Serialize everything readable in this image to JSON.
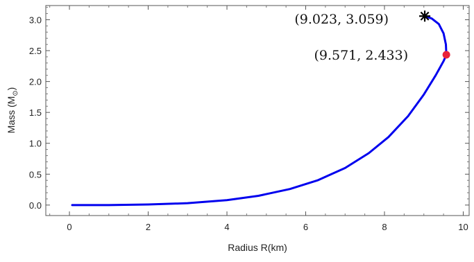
{
  "chart_data": {
    "type": "line",
    "xlabel": "Radius R(km)",
    "ylabel": "Mass (M",
    "ylabel_subscript": "⊙",
    "ylabel_close": ")",
    "xlim": [
      -0.6,
      10.15
    ],
    "ylim": [
      -0.17,
      3.23
    ],
    "x_ticks": [
      0,
      2,
      4,
      6,
      8,
      10
    ],
    "x_tick_labels": [
      "0",
      "2",
      "4",
      "6",
      "8",
      "10"
    ],
    "y_ticks": [
      0.0,
      0.5,
      1.0,
      1.5,
      2.0,
      2.5,
      3.0
    ],
    "y_tick_labels": [
      "0.0",
      "0.5",
      "1.0",
      "1.5",
      "2.0",
      "2.5",
      "3.0"
    ],
    "grid": false,
    "series": [
      {
        "color": "#0000ee",
        "x": [
          0.07,
          1.0,
          2.0,
          3.0,
          4.0,
          4.8,
          5.6,
          6.3,
          7.0,
          7.6,
          8.1,
          8.6,
          9.0,
          9.3,
          9.5,
          9.571,
          9.56,
          9.5,
          9.38,
          9.2,
          9.023
        ],
        "y": [
          0.0,
          0.0,
          0.01,
          0.03,
          0.08,
          0.15,
          0.26,
          0.4,
          0.6,
          0.84,
          1.1,
          1.44,
          1.79,
          2.1,
          2.33,
          2.433,
          2.6,
          2.78,
          2.93,
          3.02,
          3.059
        ]
      }
    ],
    "points": [
      {
        "x": 9.023,
        "y": 3.059,
        "marker": "star",
        "color": "#000000",
        "label": "(9.023, 3.059)"
      },
      {
        "x": 9.571,
        "y": 2.433,
        "marker": "circle",
        "color": "#e8213a",
        "label": "(9.571, 2.433)"
      }
    ]
  }
}
